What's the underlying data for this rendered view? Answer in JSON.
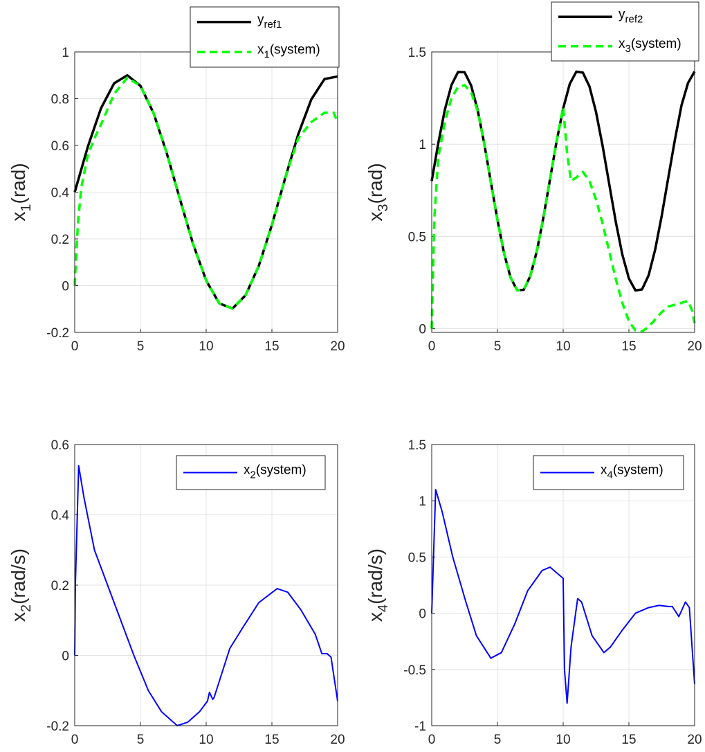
{
  "chart_data": [
    {
      "type": "line",
      "ylabel": [
        "x",
        "1",
        "(rad)"
      ],
      "xlim": [
        0,
        20
      ],
      "ylim": [
        -0.2,
        1
      ],
      "xticks": [
        0,
        5,
        10,
        15,
        20
      ],
      "yticks": [
        -0.2,
        0,
        0.2,
        0.4,
        0.6,
        0.8,
        1
      ],
      "grid": true,
      "legend": "northeast",
      "series": [
        {
          "name": [
            "y",
            "ref1"
          ],
          "color": "#000000",
          "style": "solid",
          "x": [
            0,
            1,
            2,
            3,
            4,
            5,
            6,
            7,
            8,
            9,
            10,
            11,
            12,
            13,
            14,
            15,
            16,
            17,
            18,
            19,
            20
          ],
          "values": [
            0.4,
            0.595,
            0.759,
            0.866,
            0.9,
            0.855,
            0.738,
            0.567,
            0.371,
            0.179,
            0.022,
            -0.076,
            -0.098,
            -0.041,
            0.084,
            0.26,
            0.458,
            0.647,
            0.797,
            0.884,
            0.895
          ]
        },
        {
          "name": [
            "x",
            "1",
            "(system)"
          ],
          "color": "#00ff00",
          "style": "dashed",
          "x": [
            0,
            0.1,
            0.25,
            0.5,
            1,
            1.5,
            2,
            3,
            4,
            5,
            6,
            7,
            8,
            9,
            10,
            11,
            12,
            13,
            14,
            15,
            16,
            17,
            18,
            19,
            19.7,
            20
          ],
          "values": [
            0,
            0.12,
            0.27,
            0.42,
            0.56,
            0.63,
            0.69,
            0.82,
            0.89,
            0.855,
            0.738,
            0.567,
            0.371,
            0.179,
            0.022,
            -0.076,
            -0.098,
            -0.041,
            0.084,
            0.26,
            0.458,
            0.63,
            0.7,
            0.74,
            0.74,
            0.7
          ]
        }
      ]
    },
    {
      "type": "line",
      "ylabel": [
        "x",
        "3",
        "(rad)"
      ],
      "xlim": [
        0,
        20
      ],
      "ylim": [
        -0.02,
        1.5
      ],
      "xticks": [
        0,
        5,
        10,
        15,
        20
      ],
      "yticks": [
        0,
        0.5,
        1,
        1.5
      ],
      "grid": true,
      "legend": "northeast",
      "series": [
        {
          "name": [
            "y",
            "ref2"
          ],
          "color": "#000000",
          "style": "solid",
          "x": [
            0,
            0.5,
            1,
            1.5,
            2,
            2.5,
            3,
            3.5,
            4,
            4.5,
            5,
            5.5,
            6,
            6.5,
            7,
            7.5,
            8,
            8.5,
            9,
            9.5,
            10,
            10.5,
            11,
            11.5,
            12,
            12.5,
            13,
            13.5,
            14,
            14.5,
            15,
            15.5,
            16,
            16.5,
            17,
            17.5,
            18,
            18.5,
            19,
            19.5,
            20
          ],
          "values": [
            0.8,
            1.006,
            1.187,
            1.32,
            1.391,
            1.39,
            1.318,
            1.183,
            1.001,
            0.795,
            0.59,
            0.41,
            0.277,
            0.208,
            0.211,
            0.285,
            0.421,
            0.604,
            0.81,
            1.015,
            1.194,
            1.326,
            1.393,
            1.388,
            1.313,
            1.174,
            0.991,
            0.785,
            0.58,
            0.402,
            0.272,
            0.207,
            0.213,
            0.289,
            0.429,
            0.613,
            0.82,
            1.024,
            1.21,
            1.332,
            1.394
          ]
        },
        {
          "name": [
            "x",
            "3",
            "(system)"
          ],
          "color": "#00ff00",
          "style": "dashed",
          "x": [
            0,
            0.2,
            0.5,
            1,
            1.5,
            2,
            2.5,
            3,
            3.5,
            4,
            4.5,
            5,
            5.5,
            6,
            6.5,
            7,
            7.5,
            8,
            8.5,
            9,
            9.5,
            10,
            10.3,
            10.6,
            11,
            11.5,
            12,
            12.5,
            13,
            13.5,
            14,
            14.5,
            15,
            15.5,
            16,
            16.5,
            17,
            17.5,
            18,
            18.5,
            19,
            19.5,
            19.8,
            20
          ],
          "values": [
            0,
            0.6,
            0.93,
            1.12,
            1.25,
            1.31,
            1.32,
            1.28,
            1.18,
            1.0,
            0.795,
            0.59,
            0.41,
            0.277,
            0.208,
            0.211,
            0.285,
            0.421,
            0.604,
            0.81,
            1.015,
            1.2,
            0.95,
            0.8,
            0.82,
            0.85,
            0.8,
            0.7,
            0.57,
            0.42,
            0.27,
            0.14,
            0.04,
            -0.01,
            -0.015,
            0.01,
            0.05,
            0.09,
            0.12,
            0.13,
            0.14,
            0.15,
            0.1,
            0.03
          ]
        }
      ]
    },
    {
      "type": "line",
      "ylabel": [
        "x",
        "2",
        "(rad/s)"
      ],
      "xlim": [
        0,
        20
      ],
      "ylim": [
        -0.2,
        0.6
      ],
      "xticks": [
        0,
        5,
        10,
        15,
        20
      ],
      "yticks": [
        -0.2,
        0,
        0.2,
        0.4,
        0.6
      ],
      "grid": true,
      "legend": "northeast",
      "series": [
        {
          "name": [
            "x",
            "2",
            "(system)"
          ],
          "color": "#0000ff",
          "style": "solid",
          "x": [
            0,
            0.05,
            0.3,
            0.7,
            1.5,
            2.5,
            3.5,
            4.5,
            5.6,
            6.6,
            7.8,
            8.6,
            9.5,
            10.1,
            10.25,
            10.5,
            10.6,
            11.2,
            11.8,
            12.8,
            14,
            15.4,
            16.2,
            17.2,
            18.3,
            18.8,
            19.2,
            19.5,
            20
          ],
          "values": [
            0,
            0.2,
            0.54,
            0.45,
            0.3,
            0.2,
            0.1,
            0,
            -0.1,
            -0.16,
            -0.2,
            -0.19,
            -0.16,
            -0.13,
            -0.105,
            -0.125,
            -0.12,
            -0.05,
            0.02,
            0.08,
            0.15,
            0.19,
            0.18,
            0.13,
            0.06,
            0.005,
            0.005,
            -0.005,
            -0.13
          ]
        }
      ]
    },
    {
      "type": "line",
      "ylabel": [
        "x",
        "4",
        "(rad/s)"
      ],
      "xlim": [
        0,
        20
      ],
      "ylim": [
        -1,
        1.5
      ],
      "xticks": [
        0,
        5,
        10,
        15,
        20
      ],
      "yticks": [
        -1,
        -0.5,
        0,
        0.5,
        1,
        1.5
      ],
      "grid": true,
      "legend": "northeast",
      "series": [
        {
          "name": [
            "x",
            "4",
            "(system)"
          ],
          "color": "#0000ff",
          "style": "solid",
          "x": [
            0,
            0.3,
            0.8,
            1.6,
            2.6,
            3.4,
            4.5,
            5.3,
            6.3,
            7.3,
            8.4,
            9,
            9.6,
            10,
            10.1,
            10.3,
            10.6,
            11.1,
            11.4,
            12.2,
            13.1,
            13.6,
            14.5,
            15.5,
            16.5,
            17.3,
            18,
            18.3,
            18.8,
            19.3,
            19.6,
            20
          ],
          "values": [
            0,
            1.1,
            0.9,
            0.5,
            0.1,
            -0.2,
            -0.4,
            -0.35,
            -0.1,
            0.2,
            0.38,
            0.41,
            0.35,
            0.31,
            -0.5,
            -0.8,
            -0.3,
            0.13,
            0.1,
            -0.2,
            -0.35,
            -0.3,
            -0.15,
            0,
            0.05,
            0.07,
            0.06,
            0.06,
            -0.03,
            0.1,
            0.05,
            -0.63
          ]
        }
      ]
    }
  ]
}
